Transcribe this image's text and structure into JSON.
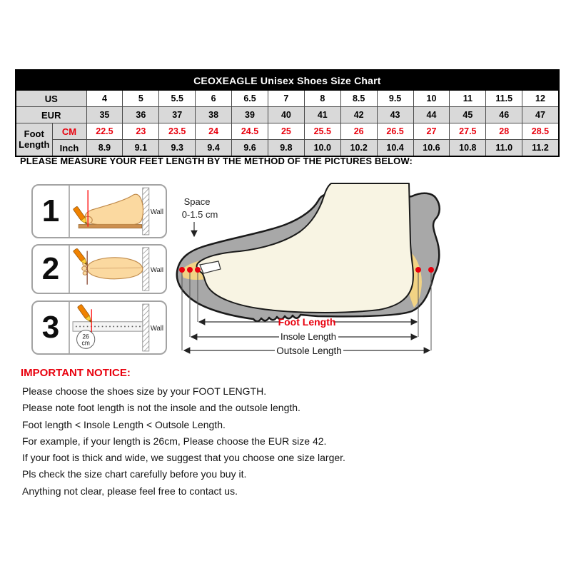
{
  "table": {
    "title": "CEOXEAGLE Unisex Shoes Size Chart",
    "row_labels": {
      "us": "US",
      "eur": "EUR",
      "foot_length": "Foot Length",
      "cm": "CM",
      "inch": "Inch"
    },
    "us": [
      "4",
      "5",
      "5.5",
      "6",
      "6.5",
      "7",
      "8",
      "8.5",
      "9.5",
      "10",
      "11",
      "11.5",
      "12"
    ],
    "eur": [
      "35",
      "36",
      "37",
      "38",
      "39",
      "40",
      "41",
      "42",
      "43",
      "44",
      "45",
      "46",
      "47"
    ],
    "cm": [
      "22.5",
      "23",
      "23.5",
      "24",
      "24.5",
      "25",
      "25.5",
      "26",
      "26.5",
      "27",
      "27.5",
      "28",
      "28.5"
    ],
    "inch": [
      "8.9",
      "9.1",
      "9.3",
      "9.4",
      "9.6",
      "9.8",
      "10.0",
      "10.2",
      "10.4",
      "10.6",
      "10.8",
      "11.0",
      "11.2"
    ]
  },
  "instruction": "PLEASE MEASURE YOUR FEET LENGTH BY THE METHOD OF THE PICTURES BELOW:",
  "steps": {
    "one": {
      "number": "1",
      "wall": "Wall"
    },
    "two": {
      "number": "2",
      "wall": "Wall"
    },
    "three": {
      "number": "3",
      "wall": "Wall",
      "ruler_mark_value": "26",
      "ruler_mark_unit": "cm"
    }
  },
  "shoe_diagram": {
    "space_label": "Space",
    "space_range": "0-1.5 cm",
    "foot_length": "Foot Length",
    "insole_length": "Insole Length",
    "outsole_length": "Outsole Length"
  },
  "notice": {
    "heading": "IMPORTANT NOTICE:",
    "lines": [
      "Please choose the shoes size by your FOOT LENGTH.",
      "Please note foot length is not the insole and the outsole length.",
      "Foot length < Insole Length < Outsole Length.",
      "For example, if your length is 26cm, Please choose the EUR size 42.",
      "If your foot is thick and wide, we suggest that you choose one size larger.",
      "Pls check the size chart carefully before you buy it.",
      "Anything not clear, please feel free to contact us."
    ]
  },
  "colors": {
    "accent_red": "#e8000d",
    "table_gray": "#d9d9d9",
    "header_black": "#000000",
    "shoe_gray": "#a8a8a8",
    "insole_yellow": "#f2d384",
    "foot_cream": "#f8f4e3",
    "skin_tone": "#fbd9a0",
    "pencil_orange": "#f08200",
    "board_tan": "#cd9050"
  }
}
